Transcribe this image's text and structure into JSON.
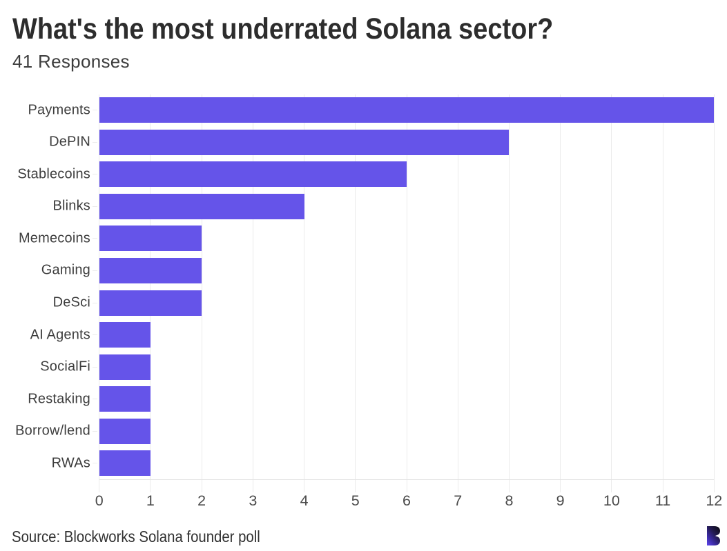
{
  "chart": {
    "title": "What's the most underrated Solana sector?",
    "subtitle": "41 Responses",
    "source": "Source: Blockworks Solana founder poll",
    "logo_icon": "blockworks-b-logo"
  },
  "colors": {
    "bar": "#6554e9",
    "background": "#ffffff",
    "gridline": "#ebebeb",
    "axis": "#e4e4e4",
    "title_text": "#2d2d2d",
    "body_text": "#3d3d3d",
    "logo_gradient_top": "#151124",
    "logo_gradient_bottom": "#5f45ec"
  },
  "chart_data": {
    "type": "bar",
    "orientation": "horizontal",
    "title": "What's the most underrated Solana sector?",
    "subtitle": "41 Responses",
    "categories": [
      "Payments",
      "DePIN",
      "Stablecoins",
      "Blinks",
      "Memecoins",
      "Gaming",
      "DeSci",
      "AI Agents",
      "SocialFi",
      "Restaking",
      "Borrow/lend",
      "RWAs"
    ],
    "values": [
      12,
      8,
      6,
      4,
      2,
      2,
      2,
      1,
      1,
      1,
      1,
      1
    ],
    "xlabel": "",
    "ylabel": "",
    "xlim": [
      0,
      12
    ],
    "xticks": [
      0,
      1,
      2,
      3,
      4,
      5,
      6,
      7,
      8,
      9,
      10,
      11,
      12
    ],
    "grid": "vertical",
    "legend": "none",
    "source": "Source: Blockworks Solana founder poll"
  }
}
